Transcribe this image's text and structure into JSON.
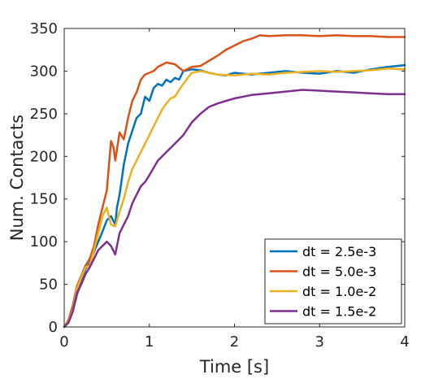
{
  "chart_data": {
    "type": "line",
    "title": "",
    "xlabel": "Time [s]",
    "ylabel": "Num. Contacts",
    "xlim": [
      0,
      4
    ],
    "ylim": [
      0,
      350
    ],
    "xticks": [
      0,
      1,
      2,
      3,
      4
    ],
    "yticks": [
      0,
      50,
      100,
      150,
      200,
      250,
      300,
      350
    ],
    "grid": false,
    "legend_location": "bottom-right",
    "series": [
      {
        "name": "dt = 2.5e-3",
        "color": "#0072BD",
        "x": [
          0,
          0.05,
          0.1,
          0.15,
          0.2,
          0.25,
          0.3,
          0.35,
          0.4,
          0.45,
          0.5,
          0.55,
          0.6,
          0.62,
          0.65,
          0.7,
          0.75,
          0.8,
          0.85,
          0.9,
          0.95,
          1.0,
          1.05,
          1.1,
          1.15,
          1.2,
          1.25,
          1.3,
          1.35,
          1.4,
          1.5,
          1.6,
          1.7,
          1.8,
          1.9,
          2.0,
          2.2,
          2.4,
          2.6,
          2.8,
          3.0,
          3.2,
          3.4,
          3.6,
          3.8,
          4.0
        ],
        "y": [
          0,
          5,
          18,
          38,
          52,
          68,
          75,
          88,
          100,
          112,
          125,
          130,
          120,
          140,
          155,
          190,
          215,
          230,
          245,
          250,
          270,
          265,
          280,
          285,
          283,
          290,
          287,
          292,
          290,
          300,
          302,
          301,
          298,
          296,
          295,
          298,
          296,
          298,
          300,
          298,
          297,
          300,
          298,
          302,
          305,
          307
        ]
      },
      {
        "name": "dt = 5.0e-3",
        "color": "#D95319",
        "x": [
          0,
          0.05,
          0.1,
          0.15,
          0.2,
          0.25,
          0.3,
          0.35,
          0.4,
          0.45,
          0.5,
          0.55,
          0.58,
          0.6,
          0.65,
          0.7,
          0.75,
          0.8,
          0.85,
          0.9,
          0.95,
          1.0,
          1.05,
          1.1,
          1.2,
          1.3,
          1.4,
          1.5,
          1.6,
          1.7,
          1.8,
          1.9,
          2.0,
          2.1,
          2.2,
          2.3,
          2.4,
          2.6,
          2.8,
          3.0,
          3.2,
          3.4,
          3.6,
          3.8,
          4.0
        ],
        "y": [
          0,
          8,
          25,
          48,
          60,
          72,
          80,
          95,
          120,
          140,
          160,
          218,
          210,
          195,
          228,
          220,
          245,
          265,
          275,
          290,
          296,
          298,
          300,
          305,
          310,
          308,
          300,
          305,
          306,
          312,
          318,
          325,
          330,
          335,
          338,
          342,
          341,
          342,
          342,
          341,
          342,
          341,
          341,
          340,
          340
        ]
      },
      {
        "name": "dt = 1.0e-2",
        "color": "#EDB120",
        "x": [
          0,
          0.05,
          0.1,
          0.15,
          0.2,
          0.25,
          0.3,
          0.35,
          0.4,
          0.45,
          0.5,
          0.55,
          0.6,
          0.65,
          0.7,
          0.75,
          0.8,
          0.85,
          0.9,
          0.95,
          1.0,
          1.05,
          1.1,
          1.15,
          1.2,
          1.25,
          1.3,
          1.35,
          1.4,
          1.45,
          1.5,
          1.6,
          1.7,
          1.8,
          2.0,
          2.2,
          2.4,
          2.6,
          2.8,
          3.0,
          3.2,
          3.4,
          3.6,
          3.8,
          4.0
        ],
        "y": [
          0,
          6,
          20,
          45,
          58,
          70,
          72,
          90,
          110,
          130,
          140,
          120,
          118,
          135,
          150,
          170,
          185,
          195,
          205,
          215,
          225,
          235,
          245,
          255,
          262,
          268,
          270,
          278,
          285,
          292,
          298,
          300,
          298,
          296,
          295,
          297,
          296,
          298,
          299,
          300,
          299,
          300,
          301,
          303,
          302
        ]
      },
      {
        "name": "dt = 1.5e-2",
        "color": "#7E2F8E",
        "x": [
          0,
          0.05,
          0.1,
          0.15,
          0.2,
          0.25,
          0.3,
          0.35,
          0.4,
          0.45,
          0.5,
          0.55,
          0.6,
          0.65,
          0.7,
          0.75,
          0.8,
          0.85,
          0.9,
          0.95,
          1.0,
          1.1,
          1.2,
          1.3,
          1.4,
          1.5,
          1.6,
          1.7,
          1.8,
          1.9,
          2.0,
          2.2,
          2.4,
          2.6,
          2.8,
          3.0,
          3.2,
          3.4,
          3.6,
          3.8,
          4.0
        ],
        "y": [
          0,
          5,
          18,
          40,
          50,
          62,
          70,
          80,
          90,
          95,
          100,
          95,
          85,
          110,
          120,
          130,
          145,
          155,
          165,
          170,
          178,
          195,
          205,
          215,
          225,
          240,
          250,
          258,
          262,
          265,
          268,
          272,
          274,
          276,
          278,
          277,
          276,
          275,
          274,
          273,
          273
        ]
      }
    ]
  }
}
